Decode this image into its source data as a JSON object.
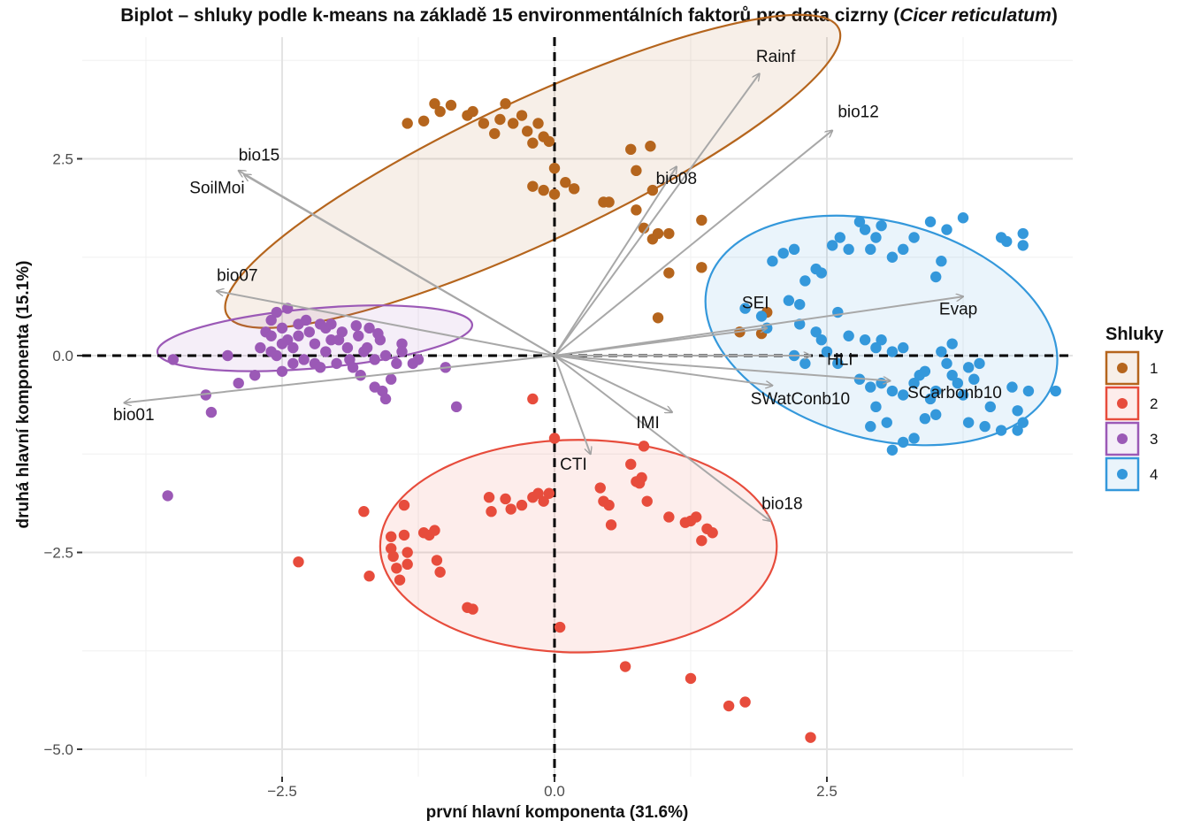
{
  "title": {
    "prefix": "Biplot – shluky podle k-means na základě 15 environmentálních faktorů pro data cizrny (",
    "species": "Cicer reticulatum",
    "suffix": ")"
  },
  "chart_data": {
    "type": "scatter",
    "subtype": "pca-biplot",
    "xlabel": "první hlavní komponenta (31.6%)",
    "ylabel": "druhá hlavní komponenta (15.1%)",
    "xlim": [
      -4.55,
      4.75
    ],
    "ylim": [
      -5.25,
      4.0
    ],
    "x_ticks": [
      -2.5,
      0.0,
      2.5
    ],
    "x_tick_labels": [
      "−2.5",
      "0.0",
      "2.5"
    ],
    "y_ticks": [
      2.5,
      0.0,
      -2.5,
      -5.0
    ],
    "y_tick_labels": [
      "2.5",
      "0.0",
      "−2.5",
      "−5.0"
    ],
    "grid": true,
    "legend": {
      "title": "Shluky",
      "position": "right"
    },
    "clusters": [
      {
        "name": "1",
        "color": "#b5651d",
        "ellipse": {
          "cx": -0.2,
          "cy": 2.34,
          "rx": 3.1,
          "ry": 0.9,
          "angle_deg": -25
        },
        "points": [
          [
            -1.35,
            2.95
          ],
          [
            -1.2,
            2.98
          ],
          [
            -1.1,
            3.2
          ],
          [
            -1.05,
            3.1
          ],
          [
            -0.95,
            3.18
          ],
          [
            -0.8,
            3.05
          ],
          [
            -0.75,
            3.1
          ],
          [
            -0.65,
            2.95
          ],
          [
            -0.55,
            2.82
          ],
          [
            -0.5,
            3.0
          ],
          [
            -0.45,
            3.2
          ],
          [
            -0.38,
            2.95
          ],
          [
            -0.3,
            3.05
          ],
          [
            -0.25,
            2.85
          ],
          [
            -0.2,
            2.7
          ],
          [
            -0.15,
            2.95
          ],
          [
            -0.1,
            2.78
          ],
          [
            -0.05,
            2.72
          ],
          [
            0.0,
            2.38
          ],
          [
            -0.2,
            2.15
          ],
          [
            -0.1,
            2.1
          ],
          [
            0.0,
            2.05
          ],
          [
            0.1,
            2.2
          ],
          [
            0.18,
            2.12
          ],
          [
            0.45,
            1.95
          ],
          [
            0.5,
            1.95
          ],
          [
            0.7,
            2.62
          ],
          [
            0.88,
            2.66
          ],
          [
            0.75,
            2.35
          ],
          [
            0.9,
            2.1
          ],
          [
            0.75,
            1.85
          ],
          [
            0.82,
            1.62
          ],
          [
            0.9,
            1.48
          ],
          [
            0.95,
            1.55
          ],
          [
            1.05,
            1.55
          ],
          [
            1.35,
            1.72
          ],
          [
            1.35,
            1.12
          ],
          [
            1.05,
            1.05
          ],
          [
            0.95,
            0.48
          ],
          [
            1.7,
            0.3
          ],
          [
            1.9,
            0.28
          ],
          [
            1.95,
            0.55
          ]
        ]
      },
      {
        "name": "2",
        "color": "#e74c3c",
        "ellipse": {
          "cx": 0.22,
          "cy": -2.42,
          "rx": 1.82,
          "ry": 1.35,
          "angle_deg": 0
        },
        "points": [
          [
            -2.35,
            -2.62
          ],
          [
            -1.75,
            -1.98
          ],
          [
            -1.7,
            -2.8
          ],
          [
            -1.5,
            -2.3
          ],
          [
            -1.5,
            -2.45
          ],
          [
            -1.48,
            -2.55
          ],
          [
            -1.45,
            -2.7
          ],
          [
            -1.42,
            -2.85
          ],
          [
            -1.38,
            -2.28
          ],
          [
            -1.35,
            -2.5
          ],
          [
            -1.35,
            -2.65
          ],
          [
            -1.38,
            -1.9
          ],
          [
            -1.2,
            -2.25
          ],
          [
            -1.15,
            -2.28
          ],
          [
            -1.1,
            -2.22
          ],
          [
            -1.08,
            -2.6
          ],
          [
            -1.05,
            -2.75
          ],
          [
            -0.8,
            -3.2
          ],
          [
            -0.75,
            -3.22
          ],
          [
            -0.6,
            -1.8
          ],
          [
            -0.58,
            -1.98
          ],
          [
            -0.45,
            -1.82
          ],
          [
            -0.4,
            -1.95
          ],
          [
            -0.3,
            -1.9
          ],
          [
            -0.2,
            -1.8
          ],
          [
            -0.15,
            -1.75
          ],
          [
            -0.1,
            -1.85
          ],
          [
            -0.05,
            -1.75
          ],
          [
            0.0,
            -1.05
          ],
          [
            0.05,
            -3.45
          ],
          [
            0.42,
            -1.68
          ],
          [
            0.45,
            -1.85
          ],
          [
            0.5,
            -1.9
          ],
          [
            0.52,
            -2.15
          ],
          [
            0.65,
            -3.95
          ],
          [
            0.7,
            -1.38
          ],
          [
            0.75,
            -1.6
          ],
          [
            0.78,
            -1.62
          ],
          [
            0.8,
            -1.55
          ],
          [
            0.82,
            -1.15
          ],
          [
            0.85,
            -1.85
          ],
          [
            1.05,
            -2.05
          ],
          [
            1.2,
            -2.12
          ],
          [
            1.25,
            -2.1
          ],
          [
            1.3,
            -2.05
          ],
          [
            1.35,
            -2.35
          ],
          [
            1.4,
            -2.2
          ],
          [
            1.45,
            -2.25
          ],
          [
            1.25,
            -4.1
          ],
          [
            1.6,
            -4.45
          ],
          [
            1.75,
            -4.4
          ],
          [
            2.35,
            -4.85
          ],
          [
            -0.2,
            -0.55
          ]
        ]
      },
      {
        "name": "3",
        "color": "#9b59b6",
        "ellipse": {
          "cx": -2.2,
          "cy": 0.22,
          "rx": 1.45,
          "ry": 0.38,
          "angle_deg": -5
        },
        "points": [
          [
            -3.5,
            -0.05
          ],
          [
            -3.2,
            -0.5
          ],
          [
            -3.15,
            -0.72
          ],
          [
            -3.0,
            0.0
          ],
          [
            -2.9,
            -0.35
          ],
          [
            -2.75,
            -0.25
          ],
          [
            -2.7,
            0.1
          ],
          [
            -2.65,
            0.3
          ],
          [
            -2.6,
            0.45
          ],
          [
            -2.55,
            0.55
          ],
          [
            -2.5,
            0.35
          ],
          [
            -2.45,
            0.2
          ],
          [
            -2.4,
            0.1
          ],
          [
            -2.35,
            0.25
          ],
          [
            -2.3,
            -0.05
          ],
          [
            -2.25,
            0.3
          ],
          [
            -2.2,
            0.15
          ],
          [
            -2.15,
            0.4
          ],
          [
            -2.1,
            0.05
          ],
          [
            -2.05,
            0.2
          ],
          [
            -2.0,
            -0.1
          ],
          [
            -1.95,
            0.3
          ],
          [
            -1.9,
            0.1
          ],
          [
            -1.85,
            -0.15
          ],
          [
            -1.8,
            0.25
          ],
          [
            -1.75,
            0.05
          ],
          [
            -1.7,
            0.35
          ],
          [
            -1.65,
            -0.05
          ],
          [
            -1.6,
            0.2
          ],
          [
            -1.55,
            0.0
          ],
          [
            -1.5,
            -0.3
          ],
          [
            -1.45,
            -0.1
          ],
          [
            -1.4,
            0.15
          ],
          [
            -2.55,
            0.0
          ],
          [
            -2.5,
            -0.2
          ],
          [
            -2.35,
            0.4
          ],
          [
            -2.28,
            0.45
          ],
          [
            -2.2,
            -0.1
          ],
          [
            -2.1,
            0.35
          ],
          [
            -1.98,
            0.2
          ],
          [
            -1.88,
            -0.05
          ],
          [
            -1.78,
            -0.25
          ],
          [
            -1.65,
            -0.4
          ],
          [
            -1.58,
            -0.45
          ],
          [
            -1.55,
            -0.55
          ],
          [
            -1.4,
            0.05
          ],
          [
            -1.3,
            -0.1
          ],
          [
            -1.25,
            -0.05
          ],
          [
            -1.0,
            -0.15
          ],
          [
            -0.9,
            -0.65
          ],
          [
            -3.55,
            -1.78
          ],
          [
            -2.45,
            0.6
          ],
          [
            -2.6,
            0.05
          ],
          [
            -2.4,
            -0.1
          ],
          [
            -2.15,
            -0.15
          ],
          [
            -2.05,
            0.4
          ],
          [
            -1.82,
            0.38
          ],
          [
            -1.72,
            0.1
          ],
          [
            -1.62,
            0.28
          ],
          [
            -2.6,
            0.25
          ],
          [
            -2.5,
            0.15
          ]
        ]
      },
      {
        "name": "4",
        "color": "#3498db",
        "ellipse": {
          "cx": 3.0,
          "cy": 0.32,
          "rx": 1.65,
          "ry": 1.38,
          "angle_deg": 15
        },
        "points": [
          [
            1.75,
            0.6
          ],
          [
            1.9,
            0.5
          ],
          [
            1.95,
            0.35
          ],
          [
            2.0,
            1.2
          ],
          [
            2.1,
            1.3
          ],
          [
            2.2,
            1.35
          ],
          [
            2.15,
            0.7
          ],
          [
            2.25,
            0.65
          ],
          [
            2.3,
            0.95
          ],
          [
            2.4,
            1.1
          ],
          [
            2.45,
            1.05
          ],
          [
            2.25,
            0.4
          ],
          [
            2.45,
            0.2
          ],
          [
            2.55,
            1.4
          ],
          [
            2.62,
            1.5
          ],
          [
            2.7,
            1.35
          ],
          [
            2.8,
            1.7
          ],
          [
            2.85,
            1.6
          ],
          [
            2.9,
            1.35
          ],
          [
            2.95,
            1.5
          ],
          [
            3.0,
            1.65
          ],
          [
            3.1,
            1.25
          ],
          [
            3.2,
            1.35
          ],
          [
            3.3,
            1.5
          ],
          [
            3.45,
            1.7
          ],
          [
            3.6,
            1.6
          ],
          [
            3.75,
            1.75
          ],
          [
            3.55,
            1.2
          ],
          [
            3.5,
            1.0
          ],
          [
            2.5,
            0.05
          ],
          [
            2.6,
            -0.1
          ],
          [
            2.7,
            0.25
          ],
          [
            2.85,
            0.2
          ],
          [
            2.95,
            0.1
          ],
          [
            3.1,
            0.05
          ],
          [
            2.8,
            -0.3
          ],
          [
            2.9,
            -0.4
          ],
          [
            3.0,
            -0.35
          ],
          [
            3.1,
            -0.45
          ],
          [
            3.2,
            -0.5
          ],
          [
            3.3,
            -0.35
          ],
          [
            3.35,
            -0.25
          ],
          [
            3.45,
            -0.55
          ],
          [
            3.5,
            -0.45
          ],
          [
            3.6,
            -0.1
          ],
          [
            3.65,
            -0.25
          ],
          [
            3.7,
            -0.35
          ],
          [
            3.75,
            -0.5
          ],
          [
            3.8,
            -0.15
          ],
          [
            3.85,
            -0.3
          ],
          [
            3.4,
            -0.8
          ],
          [
            3.5,
            -0.75
          ],
          [
            3.3,
            -1.05
          ],
          [
            3.2,
            -1.1
          ],
          [
            3.1,
            -1.2
          ],
          [
            2.95,
            -0.65
          ],
          [
            2.2,
            0.0
          ],
          [
            2.3,
            -0.1
          ],
          [
            3.65,
            0.15
          ],
          [
            3.55,
            0.05
          ],
          [
            4.1,
            1.5
          ],
          [
            4.15,
            1.45
          ],
          [
            4.3,
            1.55
          ],
          [
            4.3,
            1.4
          ],
          [
            4.0,
            -0.65
          ],
          [
            4.2,
            -0.4
          ],
          [
            4.35,
            -0.45
          ],
          [
            4.25,
            -0.7
          ],
          [
            4.3,
            -0.85
          ],
          [
            4.1,
            -0.95
          ],
          [
            3.95,
            -0.9
          ],
          [
            3.8,
            -0.85
          ],
          [
            4.25,
            -0.95
          ],
          [
            4.6,
            -0.45
          ],
          [
            3.0,
            0.2
          ],
          [
            3.2,
            0.1
          ],
          [
            3.4,
            -0.2
          ],
          [
            2.6,
            0.55
          ],
          [
            2.4,
            0.3
          ],
          [
            3.9,
            -0.1
          ],
          [
            3.05,
            -0.85
          ],
          [
            2.9,
            -0.9
          ]
        ]
      }
    ],
    "loadings": [
      {
        "label": "Rainf",
        "x": 1.88,
        "y": 3.58
      },
      {
        "label": "bio12",
        "x": 2.55,
        "y": 2.86
      },
      {
        "label": "bio08",
        "x": 1.12,
        "y": 2.4
      },
      {
        "label": "bio15",
        "x": -2.85,
        "y": 2.3
      },
      {
        "label": "SoilMoi",
        "x": -2.9,
        "y": 2.35
      },
      {
        "label": "bio07",
        "x": -3.1,
        "y": 0.82
      },
      {
        "label": "bio01",
        "x": -3.95,
        "y": -0.6
      },
      {
        "label": "SEI",
        "x": 1.95,
        "y": 0.35
      },
      {
        "label": "Evap",
        "x": 3.75,
        "y": 0.75
      },
      {
        "label": "HLI",
        "x": 2.35,
        "y": 0.0
      },
      {
        "label": "SCarbonb10",
        "x": 3.08,
        "y": -0.32
      },
      {
        "label": "SWatConb10",
        "x": 2.0,
        "y": -0.38
      },
      {
        "label": "IMI",
        "x": 1.08,
        "y": -0.72
      },
      {
        "label": "CTI",
        "x": 0.33,
        "y": -1.25
      },
      {
        "label": "bio18",
        "x": 1.98,
        "y": -2.1
      }
    ],
    "loading_label_positions": {
      "Rainf": [
        1.85,
        3.73
      ],
      "bio12": [
        2.6,
        3.03
      ],
      "bio08": [
        0.93,
        2.18
      ],
      "bio15": [
        -2.9,
        2.48
      ],
      "SoilMoi": [
        -3.35,
        2.06
      ],
      "bio07": [
        -3.1,
        0.95
      ],
      "bio01": [
        -4.05,
        -0.82
      ],
      "SEI": [
        1.72,
        0.6
      ],
      "Evap": [
        3.53,
        0.52
      ],
      "HLI": [
        2.5,
        -0.12
      ],
      "SCarbonb10": [
        3.24,
        -0.54
      ],
      "SWatConb10": [
        1.8,
        -0.62
      ],
      "IMI": [
        0.75,
        -0.92
      ],
      "CTI": [
        0.05,
        -1.45
      ],
      "bio18": [
        1.9,
        -1.95
      ]
    }
  }
}
